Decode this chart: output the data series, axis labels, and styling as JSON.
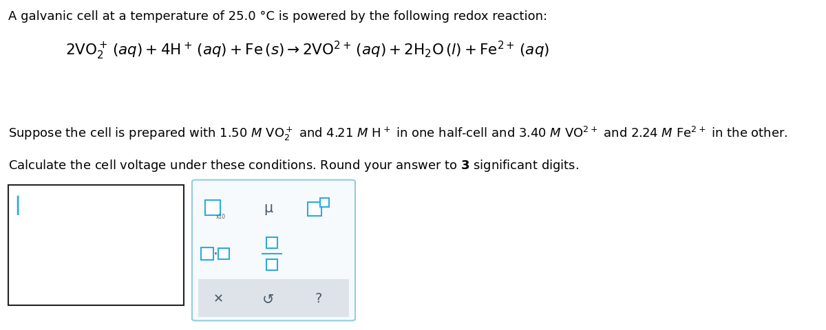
{
  "bg_color": "#ffffff",
  "text_color": "#000000",
  "line1": "A galvanic cell at a temperature of 25.0 °C is powered by the following redox reaction:",
  "line1_fontsize": 13.0,
  "equation_fontsize": 15.5,
  "suppose_fontsize": 13.0,
  "calc_fontsize": 13.0,
  "toolbar_border_color": "#90cce0",
  "toolbar_fill_color": "#f7fafd",
  "bottom_bar_color": "#dde3e8",
  "cyan_color": "#29abe2",
  "dark_gray": "#4a5a68",
  "input_border_color": "#222222"
}
